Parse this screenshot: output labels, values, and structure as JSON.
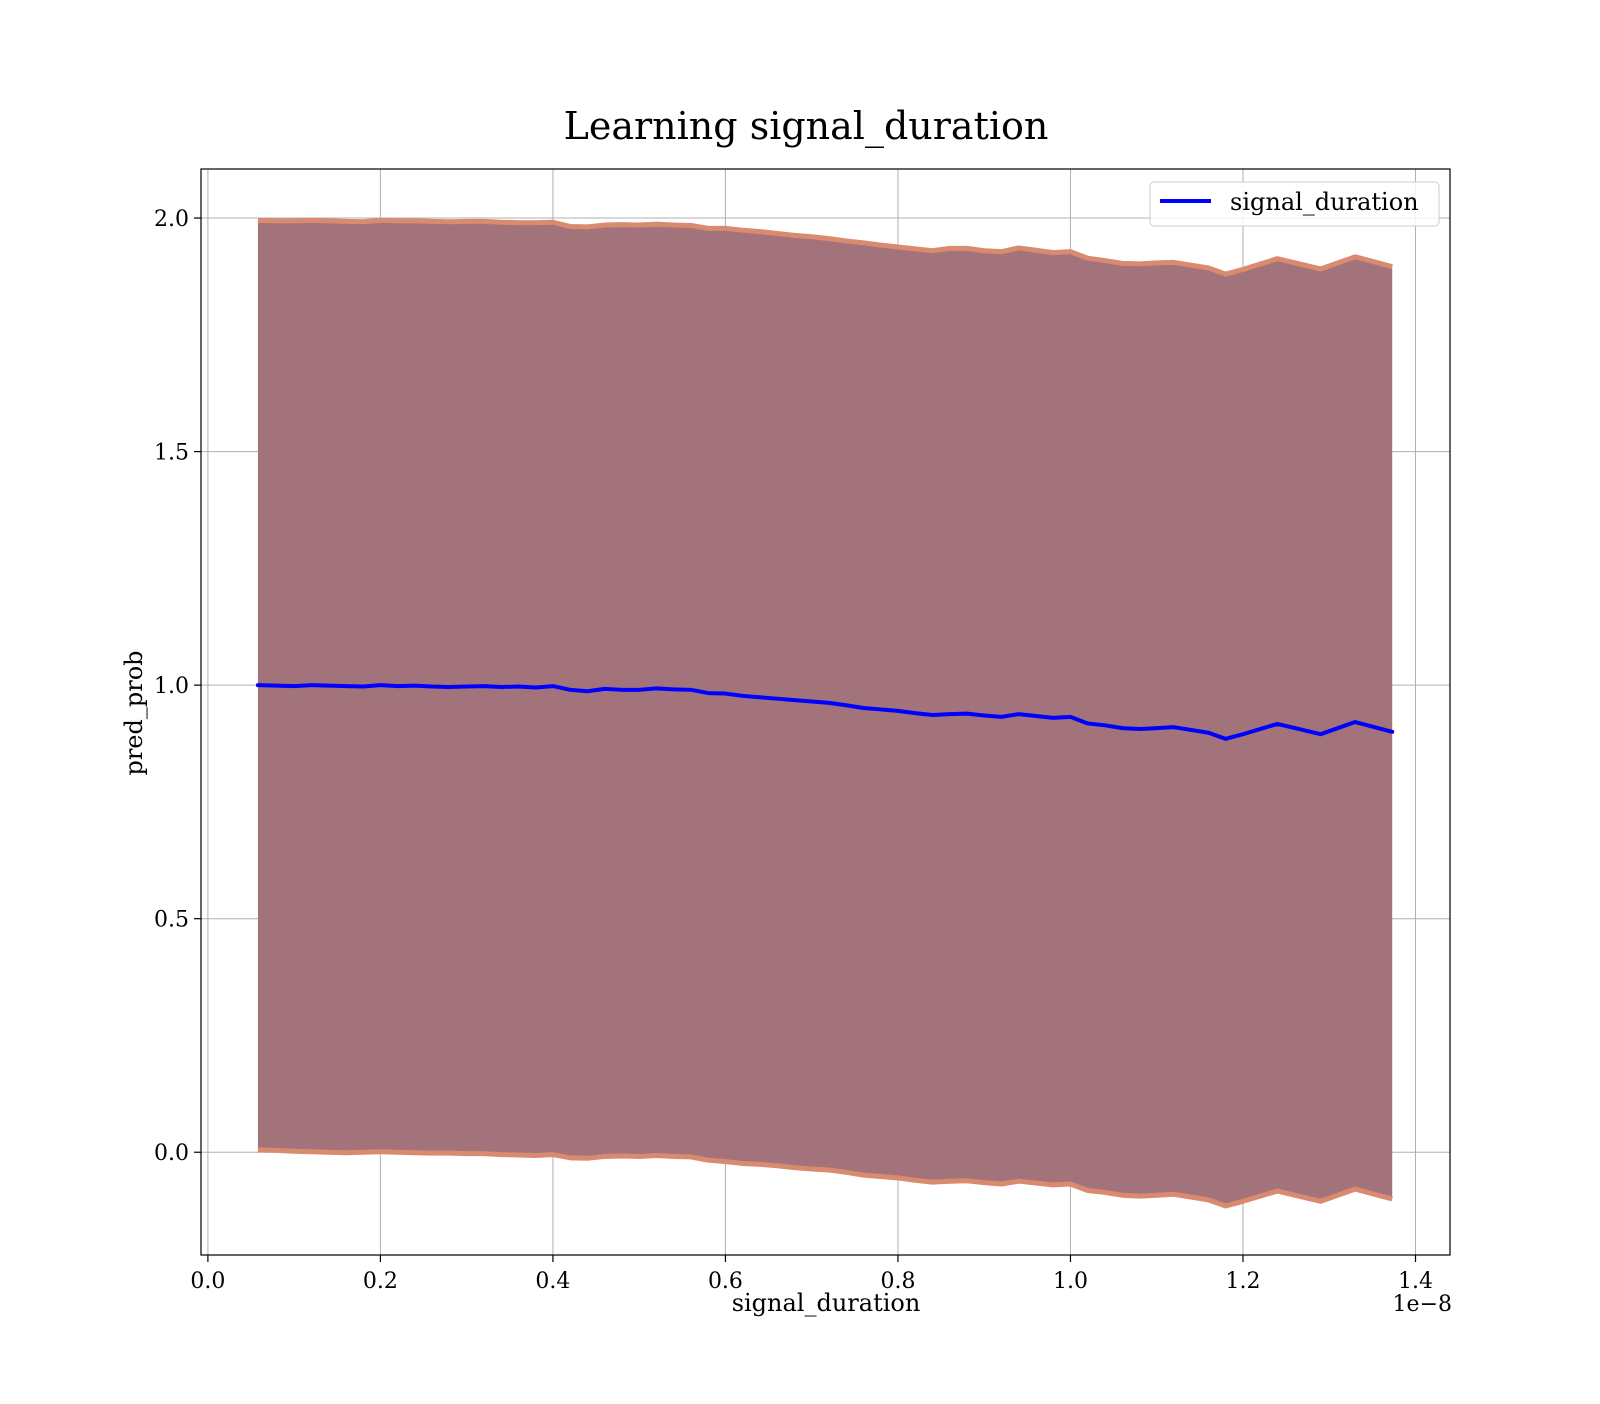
{
  "chart_data": {
    "type": "line",
    "title": "Learning signal_duration",
    "xlabel": "signal_duration",
    "ylabel": "pred_prob",
    "x_offset_text": "1e−8",
    "xlim": [
      -0.008,
      1.44
    ],
    "ylim": [
      -0.22,
      2.105
    ],
    "x_ticks": [
      0.0,
      0.2,
      0.4,
      0.6,
      0.8,
      1.0,
      1.2,
      1.4
    ],
    "x_tick_labels": [
      "0.0",
      "0.2",
      "0.4",
      "0.6",
      "0.8",
      "1.0",
      "1.2",
      "1.4"
    ],
    "y_ticks": [
      0.0,
      0.5,
      1.0,
      1.5,
      2.0
    ],
    "y_tick_labels": [
      "0.0",
      "0.5",
      "1.0",
      "1.5",
      "2.0"
    ],
    "grid": true,
    "legend_position": "upper right",
    "colors": {
      "line": "#0000ff",
      "band_fill": "#a2737b",
      "band_edge": "#d98a6f",
      "grid": "#b0b0b0"
    },
    "series": [
      {
        "name": "signal_duration",
        "x": [
          0.058,
          0.08,
          0.1,
          0.12,
          0.14,
          0.16,
          0.18,
          0.2,
          0.22,
          0.24,
          0.26,
          0.28,
          0.3,
          0.32,
          0.34,
          0.36,
          0.38,
          0.4,
          0.42,
          0.44,
          0.46,
          0.48,
          0.5,
          0.52,
          0.54,
          0.56,
          0.58,
          0.6,
          0.62,
          0.64,
          0.66,
          0.68,
          0.7,
          0.72,
          0.74,
          0.76,
          0.78,
          0.8,
          0.82,
          0.84,
          0.86,
          0.88,
          0.9,
          0.92,
          0.94,
          0.96,
          0.98,
          1.0,
          1.02,
          1.04,
          1.06,
          1.08,
          1.1,
          1.12,
          1.16,
          1.18,
          1.2,
          1.24,
          1.29,
          1.33,
          1.373
        ],
        "y": [
          1.0,
          0.999,
          0.998,
          1.0,
          0.999,
          0.998,
          0.997,
          1.0,
          0.998,
          0.999,
          0.997,
          0.996,
          0.997,
          0.998,
          0.996,
          0.997,
          0.995,
          0.998,
          0.99,
          0.987,
          0.992,
          0.99,
          0.99,
          0.993,
          0.991,
          0.99,
          0.983,
          0.982,
          0.977,
          0.974,
          0.971,
          0.968,
          0.965,
          0.962,
          0.957,
          0.951,
          0.948,
          0.945,
          0.94,
          0.936,
          0.938,
          0.939,
          0.935,
          0.932,
          0.938,
          0.934,
          0.93,
          0.932,
          0.918,
          0.914,
          0.908,
          0.906,
          0.908,
          0.91,
          0.898,
          0.885,
          0.895,
          0.917,
          0.895,
          0.921,
          0.9
        ],
        "lower": [
          0.005,
          0.004,
          0.002,
          0.001,
          0.0,
          -0.001,
          0.0,
          0.001,
          0.0,
          -0.001,
          -0.002,
          -0.002,
          -0.003,
          -0.003,
          -0.005,
          -0.006,
          -0.007,
          -0.005,
          -0.012,
          -0.013,
          -0.009,
          -0.008,
          -0.009,
          -0.007,
          -0.009,
          -0.01,
          -0.017,
          -0.02,
          -0.024,
          -0.026,
          -0.029,
          -0.033,
          -0.036,
          -0.038,
          -0.043,
          -0.049,
          -0.052,
          -0.055,
          -0.06,
          -0.064,
          -0.062,
          -0.061,
          -0.065,
          -0.068,
          -0.062,
          -0.066,
          -0.07,
          -0.068,
          -0.082,
          -0.086,
          -0.092,
          -0.094,
          -0.092,
          -0.09,
          -0.102,
          -0.115,
          -0.105,
          -0.083,
          -0.105,
          -0.079,
          -0.1
        ],
        "upper": [
          1.995,
          1.994,
          1.994,
          1.995,
          1.994,
          1.993,
          1.992,
          1.995,
          1.994,
          1.994,
          1.993,
          1.992,
          1.993,
          1.993,
          1.991,
          1.99,
          1.99,
          1.991,
          1.982,
          1.981,
          1.985,
          1.986,
          1.985,
          1.987,
          1.985,
          1.984,
          1.978,
          1.978,
          1.974,
          1.971,
          1.967,
          1.963,
          1.96,
          1.956,
          1.951,
          1.947,
          1.942,
          1.938,
          1.934,
          1.93,
          1.935,
          1.935,
          1.93,
          1.928,
          1.936,
          1.931,
          1.926,
          1.928,
          1.914,
          1.909,
          1.903,
          1.902,
          1.904,
          1.905,
          1.893,
          1.88,
          1.89,
          1.913,
          1.891,
          1.917,
          1.896
        ]
      }
    ]
  }
}
